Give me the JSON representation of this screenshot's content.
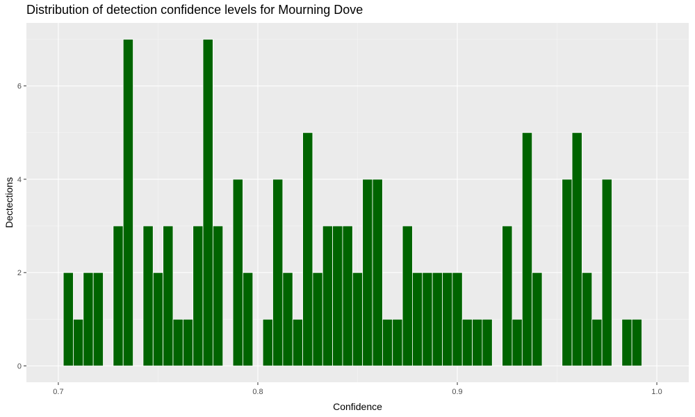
{
  "chart_data": {
    "type": "bar",
    "title": "Distribution of detection confidence levels for Mourning Dove",
    "xlabel": "Confidence",
    "ylabel": "Dectections",
    "xlim": [
      0.684,
      1.016
    ],
    "ylim": [
      -0.35,
      7.35
    ],
    "bin_width": 0.005,
    "x_ticks": [
      0.7,
      0.8,
      0.9,
      1.0
    ],
    "x_tick_labels": [
      "0.7",
      "0.8",
      "0.9",
      "1.0"
    ],
    "x_minor_ticks": [
      0.75,
      0.85,
      0.95
    ],
    "y_ticks": [
      0,
      2,
      4,
      6
    ],
    "y_tick_labels": [
      "0",
      "2",
      "4",
      "6"
    ],
    "y_minor_ticks": [
      1,
      3,
      5,
      7
    ],
    "grid": true,
    "legend": "none",
    "bar_color": "#006400",
    "bar_outline": "#ffffff",
    "panel_background": "#ebebeb",
    "series": [
      {
        "x": [
          0.705,
          0.71,
          0.715,
          0.72,
          0.73,
          0.735,
          0.745,
          0.75,
          0.755,
          0.76,
          0.765,
          0.77,
          0.775,
          0.78,
          0.79,
          0.795,
          0.805,
          0.81,
          0.815,
          0.82,
          0.825,
          0.83,
          0.835,
          0.84,
          0.845,
          0.85,
          0.855,
          0.86,
          0.865,
          0.87,
          0.875,
          0.88,
          0.885,
          0.89,
          0.895,
          0.9,
          0.905,
          0.91,
          0.915,
          0.925,
          0.93,
          0.935,
          0.94,
          0.955,
          0.96,
          0.965,
          0.97,
          0.975,
          0.985,
          0.99
        ],
        "values": [
          2,
          1,
          2,
          2,
          3,
          7,
          3,
          2,
          3,
          1,
          1,
          3,
          7,
          3,
          4,
          2,
          1,
          4,
          2,
          1,
          5,
          2,
          3,
          3,
          3,
          2,
          4,
          4,
          1,
          1,
          3,
          2,
          2,
          2,
          2,
          2,
          1,
          1,
          1,
          3,
          1,
          5,
          2,
          4,
          5,
          2,
          1,
          4,
          1,
          1
        ]
      }
    ]
  }
}
